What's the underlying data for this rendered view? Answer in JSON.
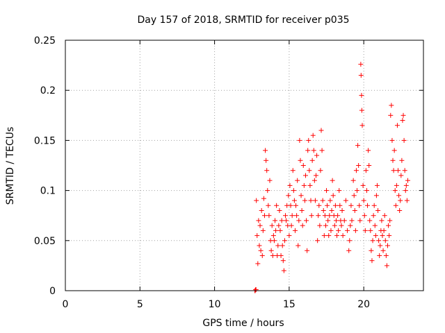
{
  "chart_data": {
    "type": "scatter",
    "title": "Day 157 of 2018, SRMTID for receiver p035",
    "xlabel": "GPS time / hours",
    "ylabel": "SRMTID / TECUs",
    "xlim": [
      0,
      24
    ],
    "ylim": [
      0,
      0.25
    ],
    "grid": true,
    "x_ticks": [
      0,
      5,
      10,
      15,
      20
    ],
    "y_ticks": [
      0,
      0.05,
      0.1,
      0.15,
      0.2,
      0.25
    ],
    "x_tick_labels": [
      "0",
      "5",
      "10",
      "15",
      "20"
    ],
    "y_tick_labels": [
      "0",
      "0.05",
      "0.1",
      "0.15",
      "0.2",
      "0.25"
    ],
    "marker": "+",
    "color": "#ff0000",
    "series": [
      {
        "name": "SRMTID",
        "points": [
          [
            12.7,
            0.0
          ],
          [
            12.72,
            0.0
          ],
          [
            12.75,
            0.001
          ],
          [
            12.78,
            0.001
          ],
          [
            12.8,
            0.09
          ],
          [
            12.85,
            0.055
          ],
          [
            12.9,
            0.027
          ],
          [
            12.95,
            0.07
          ],
          [
            13.0,
            0.045
          ],
          [
            13.05,
            0.065
          ],
          [
            13.1,
            0.04
          ],
          [
            13.15,
            0.08
          ],
          [
            13.2,
            0.035
          ],
          [
            13.25,
            0.06
          ],
          [
            13.3,
            0.092
          ],
          [
            13.35,
            0.075
          ],
          [
            13.4,
            0.14
          ],
          [
            13.45,
            0.13
          ],
          [
            13.5,
            0.12
          ],
          [
            13.55,
            0.1
          ],
          [
            13.6,
            0.085
          ],
          [
            13.65,
            0.075
          ],
          [
            13.7,
            0.11
          ],
          [
            13.75,
            0.05
          ],
          [
            13.8,
            0.04
          ],
          [
            13.85,
            0.065
          ],
          [
            13.9,
            0.035
          ],
          [
            13.95,
            0.055
          ],
          [
            14.0,
            0.05
          ],
          [
            14.05,
            0.07
          ],
          [
            14.1,
            0.06
          ],
          [
            14.15,
            0.085
          ],
          [
            14.2,
            0.035
          ],
          [
            14.25,
            0.045
          ],
          [
            14.3,
            0.065
          ],
          [
            14.35,
            0.08
          ],
          [
            14.4,
            0.06
          ],
          [
            14.45,
            0.035
          ],
          [
            14.5,
            0.07
          ],
          [
            14.55,
            0.045
          ],
          [
            14.6,
            0.03
          ],
          [
            14.65,
            0.02
          ],
          [
            14.7,
            0.05
          ],
          [
            14.75,
            0.075
          ],
          [
            14.8,
            0.07
          ],
          [
            14.85,
            0.085
          ],
          [
            14.9,
            0.065
          ],
          [
            14.95,
            0.095
          ],
          [
            15.0,
            0.055
          ],
          [
            15.05,
            0.105
          ],
          [
            15.1,
            0.085
          ],
          [
            15.15,
            0.065
          ],
          [
            15.2,
            0.075
          ],
          [
            15.25,
            0.12
          ],
          [
            15.3,
            0.1
          ],
          [
            15.35,
            0.09
          ],
          [
            15.4,
            0.06
          ],
          [
            15.45,
            0.085
          ],
          [
            15.5,
            0.075
          ],
          [
            15.55,
            0.11
          ],
          [
            15.6,
            0.045
          ],
          [
            15.65,
            0.07
          ],
          [
            15.7,
            0.15
          ],
          [
            15.75,
            0.13
          ],
          [
            15.8,
            0.095
          ],
          [
            15.85,
            0.08
          ],
          [
            15.9,
            0.065
          ],
          [
            15.95,
            0.125
          ],
          [
            16.0,
            0.105
          ],
          [
            16.05,
            0.09
          ],
          [
            16.1,
            0.115
          ],
          [
            16.15,
            0.07
          ],
          [
            16.2,
            0.04
          ],
          [
            16.25,
            0.14
          ],
          [
            16.3,
            0.15
          ],
          [
            16.35,
            0.12
          ],
          [
            16.4,
            0.105
          ],
          [
            16.45,
            0.09
          ],
          [
            16.5,
            0.075
          ],
          [
            16.55,
            0.13
          ],
          [
            16.6,
            0.155
          ],
          [
            16.65,
            0.14
          ],
          [
            16.7,
            0.11
          ],
          [
            16.75,
            0.09
          ],
          [
            16.8,
            0.115
          ],
          [
            16.85,
            0.135
          ],
          [
            16.9,
            0.05
          ],
          [
            16.95,
            0.075
          ],
          [
            17.0,
            0.085
          ],
          [
            17.05,
            0.065
          ],
          [
            17.1,
            0.12
          ],
          [
            17.15,
            0.16
          ],
          [
            17.2,
            0.14
          ],
          [
            17.25,
            0.09
          ],
          [
            17.3,
            0.08
          ],
          [
            17.35,
            0.055
          ],
          [
            17.4,
            0.075
          ],
          [
            17.45,
            0.065
          ],
          [
            17.5,
            0.1
          ],
          [
            17.55,
            0.085
          ],
          [
            17.6,
            0.07
          ],
          [
            17.65,
            0.055
          ],
          [
            17.7,
            0.075
          ],
          [
            17.75,
            0.09
          ],
          [
            17.8,
            0.06
          ],
          [
            17.85,
            0.08
          ],
          [
            17.9,
            0.11
          ],
          [
            17.95,
            0.095
          ],
          [
            18.0,
            0.075
          ],
          [
            18.05,
            0.065
          ],
          [
            18.1,
            0.085
          ],
          [
            18.15,
            0.07
          ],
          [
            18.2,
            0.055
          ],
          [
            18.25,
            0.075
          ],
          [
            18.3,
            0.06
          ],
          [
            18.35,
            0.1
          ],
          [
            18.4,
            0.085
          ],
          [
            18.45,
            0.07
          ],
          [
            18.5,
            0.065
          ],
          [
            18.55,
            0.08
          ],
          [
            18.6,
            0.055
          ],
          [
            18.7,
            0.07
          ],
          [
            18.8,
            0.09
          ],
          [
            18.9,
            0.06
          ],
          [
            19.0,
            0.04
          ],
          [
            19.05,
            0.05
          ],
          [
            19.1,
            0.065
          ],
          [
            19.15,
            0.085
          ],
          [
            19.2,
            0.07
          ],
          [
            19.3,
            0.11
          ],
          [
            19.35,
            0.095
          ],
          [
            19.4,
            0.08
          ],
          [
            19.45,
            0.06
          ],
          [
            19.5,
            0.12
          ],
          [
            19.55,
            0.1
          ],
          [
            19.6,
            0.145
          ],
          [
            19.65,
            0.125
          ],
          [
            19.7,
            0.085
          ],
          [
            19.75,
            0.07
          ],
          [
            19.8,
            0.226
          ],
          [
            19.82,
            0.215
          ],
          [
            19.85,
            0.195
          ],
          [
            19.87,
            0.18
          ],
          [
            19.9,
            0.165
          ],
          [
            19.95,
            0.105
          ],
          [
            20.0,
            0.09
          ],
          [
            20.05,
            0.075
          ],
          [
            20.1,
            0.06
          ],
          [
            20.15,
            0.12
          ],
          [
            20.2,
            0.1
          ],
          [
            20.25,
            0.085
          ],
          [
            20.3,
            0.14
          ],
          [
            20.35,
            0.125
          ],
          [
            20.4,
            0.07
          ],
          [
            20.45,
            0.06
          ],
          [
            20.5,
            0.04
          ],
          [
            20.55,
            0.03
          ],
          [
            20.6,
            0.05
          ],
          [
            20.65,
            0.075
          ],
          [
            20.7,
            0.085
          ],
          [
            20.75,
            0.065
          ],
          [
            20.8,
            0.055
          ],
          [
            20.85,
            0.095
          ],
          [
            20.9,
            0.105
          ],
          [
            20.95,
            0.08
          ],
          [
            21.0,
            0.05
          ],
          [
            21.05,
            0.035
          ],
          [
            21.1,
            0.045
          ],
          [
            21.15,
            0.06
          ],
          [
            21.2,
            0.07
          ],
          [
            21.25,
            0.055
          ],
          [
            21.3,
            0.04
          ],
          [
            21.35,
            0.06
          ],
          [
            21.4,
            0.075
          ],
          [
            21.45,
            0.05
          ],
          [
            21.5,
            0.035
          ],
          [
            21.55,
            0.025
          ],
          [
            21.6,
            0.045
          ],
          [
            21.65,
            0.065
          ],
          [
            21.7,
            0.055
          ],
          [
            21.75,
            0.07
          ],
          [
            21.8,
            0.175
          ],
          [
            21.85,
            0.185
          ],
          [
            21.9,
            0.15
          ],
          [
            21.95,
            0.13
          ],
          [
            22.0,
            0.12
          ],
          [
            22.05,
            0.14
          ],
          [
            22.1,
            0.1
          ],
          [
            22.15,
            0.085
          ],
          [
            22.2,
            0.105
          ],
          [
            22.25,
            0.165
          ],
          [
            22.3,
            0.12
          ],
          [
            22.35,
            0.095
          ],
          [
            22.4,
            0.08
          ],
          [
            22.45,
            0.09
          ],
          [
            22.5,
            0.115
          ],
          [
            22.55,
            0.13
          ],
          [
            22.6,
            0.17
          ],
          [
            22.65,
            0.175
          ],
          [
            22.7,
            0.15
          ],
          [
            22.75,
            0.12
          ],
          [
            22.8,
            0.1
          ],
          [
            22.85,
            0.105
          ],
          [
            22.9,
            0.09
          ],
          [
            22.95,
            0.11
          ]
        ]
      }
    ]
  }
}
